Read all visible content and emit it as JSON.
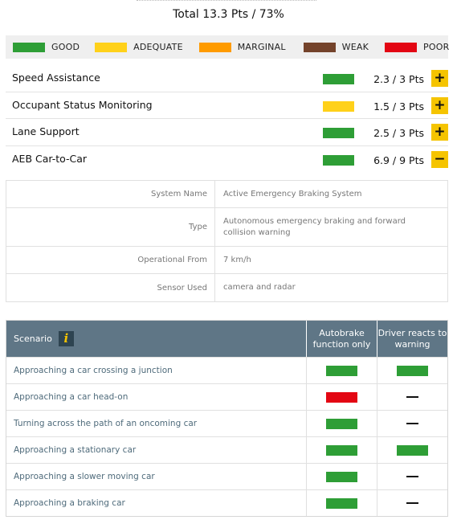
{
  "total": "Total 13.3 Pts / 73%",
  "colors": {
    "good": "#2e9e36",
    "adequate": "#ffd11a",
    "marginal": "#ff9b00",
    "weak": "#74432b",
    "poor": "#e30613",
    "accent": "#f5c400"
  },
  "legend": [
    {
      "label": "GOOD",
      "color": "#2e9e36"
    },
    {
      "label": "ADEQUATE",
      "color": "#ffd11a"
    },
    {
      "label": "MARGINAL",
      "color": "#ff9b00"
    },
    {
      "label": "WEAK",
      "color": "#74432b"
    },
    {
      "label": "POOR",
      "color": "#e30613"
    }
  ],
  "categories": [
    {
      "name": "Speed Assistance",
      "rating": "good",
      "points": "2.3 / 3 Pts",
      "toggle": "+"
    },
    {
      "name": "Occupant Status Monitoring",
      "rating": "adequate",
      "points": "1.5 / 3 Pts",
      "toggle": "+"
    },
    {
      "name": "Lane Support",
      "rating": "good",
      "points": "2.5 / 3 Pts",
      "toggle": "+"
    },
    {
      "name": "AEB Car-to-Car",
      "rating": "good",
      "points": "6.9 / 9 Pts",
      "toggle": "−"
    }
  ],
  "system_info": [
    {
      "label": "System Name",
      "value": "Active Emergency Braking System"
    },
    {
      "label": "Type",
      "value": "Autonomous emergency braking and forward collision warning"
    },
    {
      "label": "Operational From",
      "value": "7 km/h"
    },
    {
      "label": "Sensor Used",
      "value": "camera and radar"
    }
  ],
  "scenario_table": {
    "header_scenario": "Scenario",
    "info_icon": "i",
    "header_autobrake": "Autobrake function only",
    "header_driver": "Driver reacts to warning",
    "rows": [
      {
        "name": "Approaching a car crossing a junction",
        "autobrake": "good",
        "driver": "good"
      },
      {
        "name": "Approaching a car head-on",
        "autobrake": "poor",
        "driver": "none"
      },
      {
        "name": "Turning across the path of an oncoming car",
        "autobrake": "good",
        "driver": "none"
      },
      {
        "name": "Approaching a stationary car",
        "autobrake": "good",
        "driver": "good"
      },
      {
        "name": "Approaching a slower moving car",
        "autobrake": "good",
        "driver": "none"
      },
      {
        "name": "Approaching a braking car",
        "autobrake": "good",
        "driver": "none"
      }
    ]
  }
}
